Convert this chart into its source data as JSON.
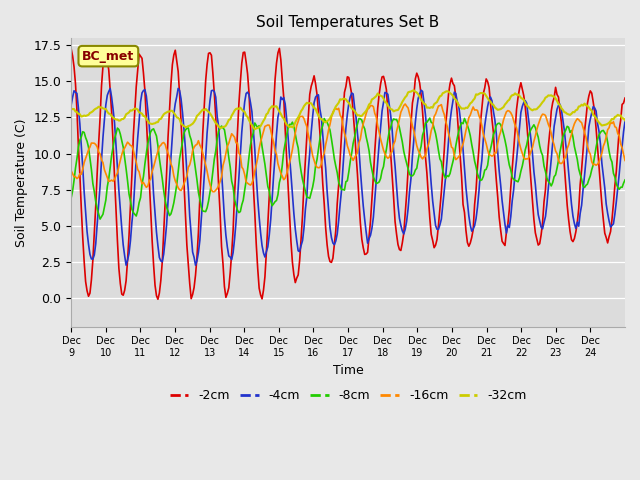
{
  "title": "Soil Temperatures Set B",
  "xlabel": "Time",
  "ylabel": "Soil Temperature (C)",
  "annotation": "BC_met",
  "ylim": [
    -2,
    18
  ],
  "xlim": [
    0,
    16
  ],
  "x_tick_labels": [
    "Dec 9",
    "Dec 10",
    "Dec 11",
    "Dec 12",
    "Dec 13",
    "Dec 14",
    "Dec 15",
    "Dec 16",
    "Dec 17",
    "Dec 18",
    "Dec 19",
    "Dec 20",
    "Dec 21",
    "Dec 22",
    "Dec 23",
    "Dec 24"
  ],
  "series_colors": [
    "#dd0000",
    "#2233cc",
    "#22cc00",
    "#ff8800",
    "#cccc00"
  ],
  "series_labels": [
    "-2cm",
    "-4cm",
    "-8cm",
    "-16cm",
    "-32cm"
  ],
  "background_color": "#e8e8e8",
  "plot_bg": "#dcdcdc",
  "ndays": 16,
  "pts_per_day": 24
}
